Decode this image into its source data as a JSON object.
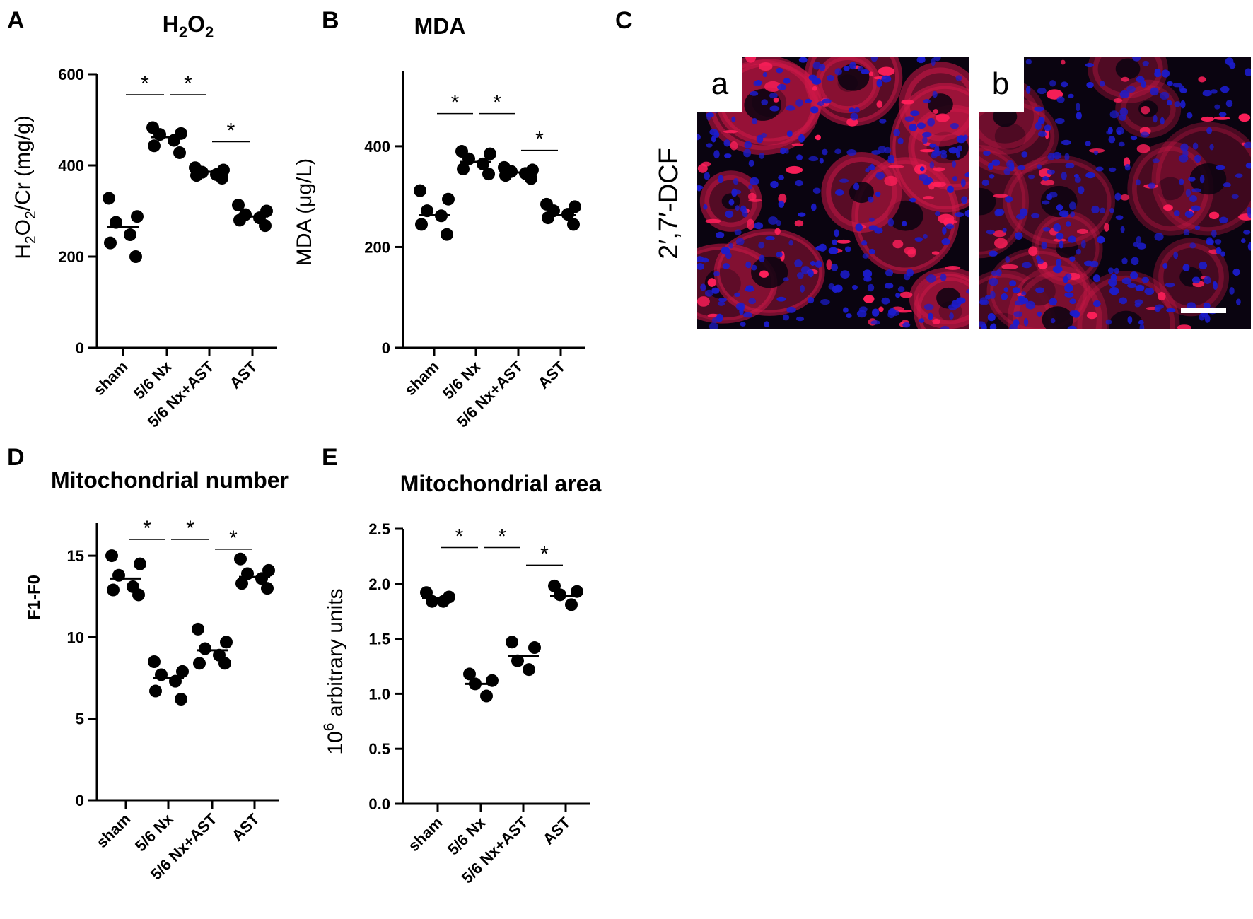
{
  "panel_letters": {
    "A": "A",
    "B": "B",
    "C": "C",
    "D": "D",
    "E": "E"
  },
  "categories": [
    "sham",
    "5/6 Nx",
    "5/6 Nx+AST",
    "AST"
  ],
  "microscopy": {
    "stain_label": "2′,7′-DCF",
    "panel_a_label": "a",
    "panel_b_label": "b",
    "colors": {
      "cytoplasm": "#d01848",
      "nuclei": "#1c1ccc",
      "background": "#0a0410"
    }
  },
  "chart_data": [
    {
      "id": "A",
      "type": "scatter",
      "title": "H2O2",
      "ylabel": "H2O2/Cr (mg/g)",
      "ylim": [
        0,
        600
      ],
      "yticks": [
        0,
        200,
        400,
        600
      ],
      "categories": [
        "sham",
        "5/6 Nx",
        "5/6 Nx+AST",
        "AST"
      ],
      "points": [
        [
          328,
          288,
          275,
          248,
          230,
          200
        ],
        [
          483,
          470,
          468,
          455,
          443,
          428
        ],
        [
          395,
          390,
          385,
          380,
          378,
          372
        ],
        [
          313,
          300,
          292,
          285,
          280,
          268
        ]
      ],
      "means": [
        265,
        462,
        386,
        288
      ],
      "significance": [
        {
          "from": 0,
          "to": 1,
          "label": "*",
          "y": 555
        },
        {
          "from": 1,
          "to": 2,
          "label": "*",
          "y": 555
        },
        {
          "from": 2,
          "to": 3,
          "label": "*",
          "y": 452
        }
      ]
    },
    {
      "id": "B",
      "type": "scatter",
      "title": "MDA",
      "ylabel": "MDA (μg/L)",
      "ylim": [
        0,
        550
      ],
      "yticks": [
        0,
        200,
        400
      ],
      "categories": [
        "sham",
        "5/6 Nx",
        "5/6 Nx+AST",
        "AST"
      ],
      "points": [
        [
          312,
          295,
          272,
          262,
          245,
          225
        ],
        [
          390,
          385,
          375,
          365,
          355,
          345
        ],
        [
          358,
          353,
          350,
          346,
          342,
          336
        ],
        [
          285,
          280,
          272,
          265,
          258,
          245
        ]
      ],
      "means": [
        263,
        369,
        348,
        263
      ],
      "significance": [
        {
          "from": 0,
          "to": 1,
          "label": "*",
          "y": 465
        },
        {
          "from": 1,
          "to": 2,
          "label": "*",
          "y": 465
        },
        {
          "from": 2,
          "to": 3,
          "label": "*",
          "y": 392
        }
      ]
    },
    {
      "id": "D",
      "type": "scatter",
      "title": "Mitochondrial number",
      "ylabel": "F1-F0",
      "ylim": [
        0,
        17
      ],
      "yticks": [
        0,
        5,
        10,
        15
      ],
      "categories": [
        "sham",
        "5/6 Nx",
        "5/6 Nx+AST",
        "AST"
      ],
      "points": [
        [
          15.0,
          14.5,
          13.8,
          13.1,
          12.9,
          12.6
        ],
        [
          8.5,
          7.9,
          7.7,
          7.3,
          6.7,
          6.2
        ],
        [
          10.5,
          9.7,
          9.3,
          8.9,
          8.4,
          8.4
        ],
        [
          14.8,
          14.1,
          13.9,
          13.6,
          13.3,
          13.0
        ]
      ],
      "means": [
        13.6,
        7.5,
        9.2,
        13.7
      ],
      "significance": [
        {
          "from": 0,
          "to": 1,
          "label": "*",
          "y": 16.0
        },
        {
          "from": 1,
          "to": 2,
          "label": "*",
          "y": 16.0
        },
        {
          "from": 2,
          "to": 3,
          "label": "*",
          "y": 15.4
        }
      ]
    },
    {
      "id": "E",
      "type": "scatter",
      "title": "Mitochondrial area",
      "ylabel": "10^6 arbitrary units",
      "ylim": [
        0,
        2.5
      ],
      "yticks": [
        0.0,
        0.5,
        1.0,
        1.5,
        2.0,
        2.5
      ],
      "yformat": 1,
      "categories": [
        "sham",
        "5/6 Nx",
        "5/6 Nx+AST",
        "AST"
      ],
      "points": [
        [
          1.92,
          1.88,
          1.84,
          1.84
        ],
        [
          1.18,
          1.12,
          1.09,
          0.98
        ],
        [
          1.47,
          1.42,
          1.3,
          1.22
        ],
        [
          1.98,
          1.93,
          1.9,
          1.81
        ]
      ],
      "means": [
        1.87,
        1.09,
        1.34,
        1.89
      ],
      "significance": [
        {
          "from": 0,
          "to": 1,
          "label": "*",
          "y": 2.33
        },
        {
          "from": 1,
          "to": 2,
          "label": "*",
          "y": 2.33
        },
        {
          "from": 2,
          "to": 3,
          "label": "*",
          "y": 2.17
        }
      ]
    }
  ]
}
